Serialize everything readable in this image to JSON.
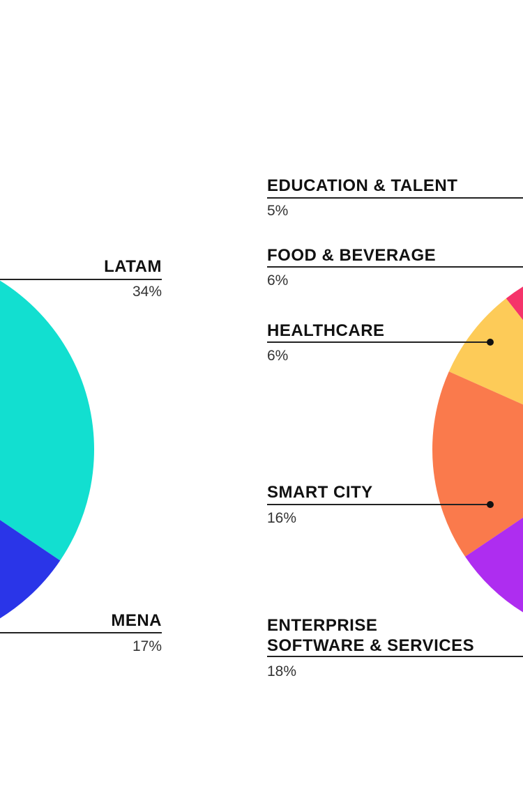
{
  "chart_data": [
    {
      "type": "pie",
      "title": "",
      "slices": [
        {
          "label": "LATAM",
          "value_label": "34%",
          "value": 34,
          "color": "#12DFD0"
        },
        {
          "label": "MENA",
          "value_label": "17%",
          "value": 17,
          "color": "#2A35E8"
        }
      ]
    },
    {
      "type": "pie",
      "title": "",
      "slices": [
        {
          "label": "EDUCATION & TALENT",
          "value_label": "5%",
          "value": 5,
          "color": ""
        },
        {
          "label": "FOOD & BEVERAGE",
          "value_label": "6%",
          "value": 6,
          "color": "#F5346A"
        },
        {
          "label": "HEALTHCARE",
          "value_label": "6%",
          "value": 6,
          "color": "#FDCB58"
        },
        {
          "label": "SMART CITY",
          "value_label": "16%",
          "value": 16,
          "color": "#FA7A4C"
        },
        {
          "label": "ENTERPRISE SOFTWARE & SERVICES",
          "value_label": "18%",
          "value": 18,
          "color": "#AE2DF0"
        }
      ]
    }
  ]
}
